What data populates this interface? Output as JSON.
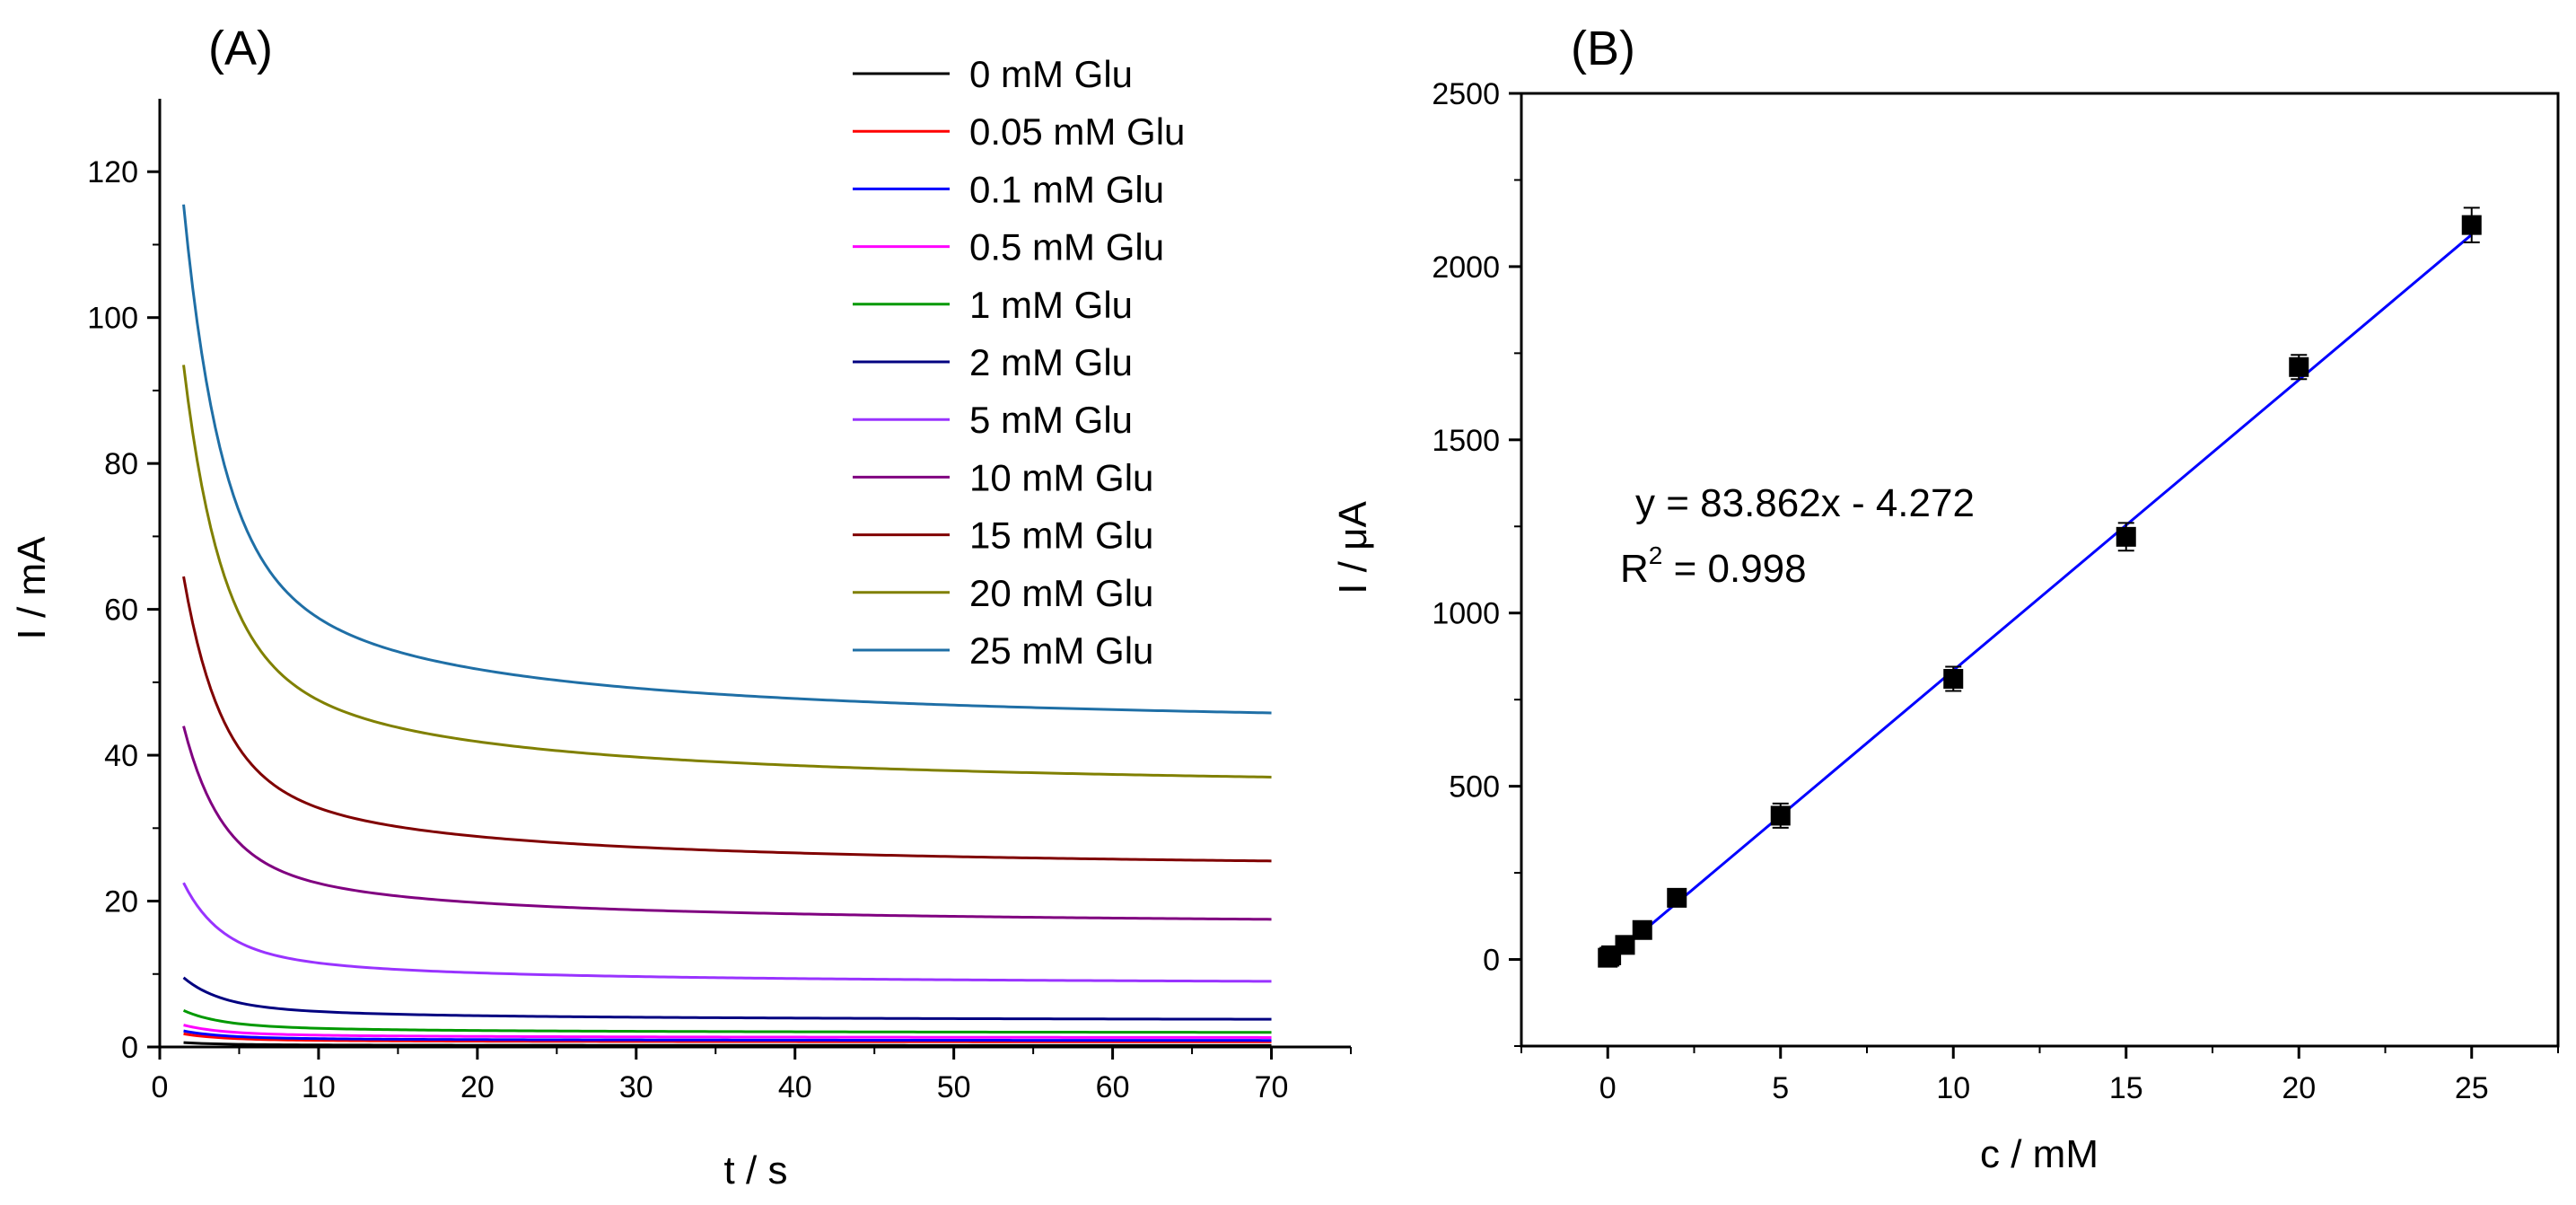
{
  "chart_data": [
    {
      "panel": "(A)",
      "type": "line",
      "xlabel": "t / s",
      "ylabel": "I / mA",
      "xlim": [
        0,
        75
      ],
      "ylim": [
        0,
        130
      ],
      "xticks": [
        0,
        10,
        20,
        30,
        40,
        50,
        60,
        70
      ],
      "yticks": [
        0,
        20,
        40,
        60,
        80,
        100,
        120
      ],
      "x_start": 1.5,
      "x_end": 70,
      "series": [
        {
          "name": "0 mM Glu",
          "color": "#000000",
          "start": 0.6,
          "end": 0.2
        },
        {
          "name": "0.05 mM Glu",
          "color": "#ff0000",
          "start": 1.8,
          "end": 0.7
        },
        {
          "name": "0.1 mM Glu",
          "color": "#0000ff",
          "start": 2.2,
          "end": 0.9
        },
        {
          "name": "0.5 mM Glu",
          "color": "#ff00ff",
          "start": 3.0,
          "end": 1.3
        },
        {
          "name": "1 mM Glu",
          "color": "#009900",
          "start": 5.0,
          "end": 2.0
        },
        {
          "name": "2 mM Glu",
          "color": "#000080",
          "start": 9.5,
          "end": 3.8
        },
        {
          "name": "5 mM Glu",
          "color": "#9933ff",
          "start": 22.5,
          "end": 9.0
        },
        {
          "name": "10 mM Glu",
          "color": "#800080",
          "start": 44.0,
          "end": 17.5
        },
        {
          "name": "15 mM Glu",
          "color": "#800000",
          "start": 64.5,
          "end": 25.5
        },
        {
          "name": "20 mM Glu",
          "color": "#808000",
          "start": 93.5,
          "end": 37.0
        },
        {
          "name": "25 mM Glu",
          "color": "#1f6fa6",
          "start": 115.5,
          "end": 45.8
        }
      ]
    },
    {
      "panel": "(B)",
      "type": "scatter",
      "xlabel": "c / mM",
      "ylabel": "I / μA",
      "xlim": [
        -2.5,
        27.5
      ],
      "ylim": [
        -250,
        2500
      ],
      "xticks": [
        0,
        5,
        10,
        15,
        20,
        25
      ],
      "yticks": [
        0,
        500,
        1000,
        1500,
        2000,
        2500
      ],
      "x": [
        0,
        0.05,
        0.1,
        0.5,
        1,
        2,
        5,
        10,
        15,
        20,
        25
      ],
      "y": [
        5,
        8,
        12,
        42,
        85,
        178,
        415,
        810,
        1220,
        1710,
        2120
      ],
      "errors": [
        5,
        5,
        5,
        8,
        10,
        15,
        35,
        35,
        40,
        35,
        50
      ],
      "marker_color": "#000000",
      "fit": {
        "slope": 83.862,
        "intercept": -4.272,
        "color": "#0000ff"
      },
      "equation": "y = 83.862x - 4.272",
      "r2_prefix": "R",
      "r2_sup": "2",
      "r2_value": " = 0.998"
    }
  ]
}
